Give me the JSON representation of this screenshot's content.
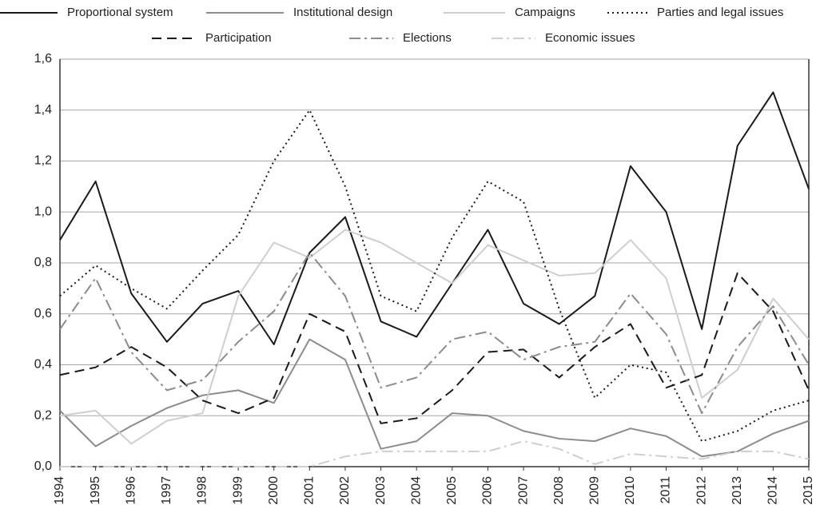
{
  "chart_data": {
    "type": "line",
    "categories": [
      "1994",
      "1995",
      "1996",
      "1997",
      "1998",
      "1999",
      "2000",
      "2001",
      "2002",
      "2003",
      "2004",
      "2005",
      "2006",
      "2007",
      "2008",
      "2009",
      "2010",
      "2011",
      "2012",
      "2013",
      "2014",
      "2015"
    ],
    "ylim": [
      0,
      1.6
    ],
    "yticks": [
      {
        "value": 0,
        "label": "0,0"
      },
      {
        "value": 0.2,
        "label": "0,2"
      },
      {
        "value": 0.4,
        "label": "0,4"
      },
      {
        "value": 0.6,
        "label": "0,6"
      },
      {
        "value": 0.8,
        "label": "0,8"
      },
      {
        "value": 1.0,
        "label": "1,0"
      },
      {
        "value": 1.2,
        "label": "1,2"
      },
      {
        "value": 1.4,
        "label": "1,4"
      },
      {
        "value": 1.6,
        "label": "1,6"
      }
    ],
    "grid": true,
    "legend": "top",
    "series": [
      {
        "name": "Proportional system",
        "color": "#1a1a1a",
        "line_style": "solid",
        "values": [
          0.89,
          1.12,
          0.68,
          0.49,
          0.64,
          0.69,
          0.48,
          0.84,
          0.98,
          0.57,
          0.51,
          0.72,
          0.93,
          0.64,
          0.56,
          0.67,
          1.18,
          1.0,
          0.54,
          1.26,
          1.47,
          1.09
        ]
      },
      {
        "name": "Institutional design",
        "color": "#8c8c8c",
        "line_style": "solid",
        "values": [
          0.22,
          0.08,
          0.16,
          0.23,
          0.28,
          0.3,
          0.25,
          0.5,
          0.42,
          0.07,
          0.1,
          0.21,
          0.2,
          0.14,
          0.11,
          0.1,
          0.15,
          0.12,
          0.04,
          0.06,
          0.13,
          0.18
        ]
      },
      {
        "name": "Campaigns",
        "color": "#cfcfcf",
        "line_style": "solid",
        "values": [
          0.2,
          0.22,
          0.09,
          0.18,
          0.21,
          0.67,
          0.88,
          0.82,
          0.93,
          0.88,
          0.8,
          0.72,
          0.87,
          0.81,
          0.75,
          0.76,
          0.89,
          0.74,
          0.27,
          0.38,
          0.66,
          0.5
        ]
      },
      {
        "name": "Parties and legal issues",
        "color": "#1a1a1a",
        "line_style": "dotted",
        "values": [
          0.67,
          0.79,
          0.7,
          0.62,
          0.77,
          0.91,
          1.2,
          1.4,
          1.1,
          0.67,
          0.61,
          0.9,
          1.12,
          1.04,
          0.62,
          0.27,
          0.4,
          0.37,
          0.1,
          0.14,
          0.22,
          0.26
        ]
      },
      {
        "name": "Participation",
        "color": "#1a1a1a",
        "line_style": "dashed",
        "values": [
          0.36,
          0.39,
          0.47,
          0.39,
          0.26,
          0.21,
          0.27,
          0.6,
          0.53,
          0.17,
          0.19,
          0.3,
          0.45,
          0.46,
          0.35,
          0.47,
          0.56,
          0.31,
          0.36,
          0.76,
          0.61,
          0.3
        ]
      },
      {
        "name": "Elections",
        "color": "#8c8c8c",
        "line_style": "dashdot",
        "values": [
          0.54,
          0.74,
          0.45,
          0.3,
          0.34,
          0.49,
          0.61,
          0.84,
          0.67,
          0.31,
          0.35,
          0.5,
          0.53,
          0.42,
          0.47,
          0.49,
          0.68,
          0.52,
          0.21,
          0.47,
          0.63,
          0.4
        ]
      },
      {
        "name": "Economic issues",
        "color": "#cfcfcf",
        "line_style": "dashdot",
        "values": [
          0.0,
          0.0,
          0.0,
          0.0,
          0.0,
          0.0,
          0.0,
          0.0,
          0.04,
          0.06,
          0.06,
          0.06,
          0.06,
          0.1,
          0.07,
          0.01,
          0.05,
          0.04,
          0.03,
          0.06,
          0.06,
          0.03
        ]
      }
    ]
  }
}
